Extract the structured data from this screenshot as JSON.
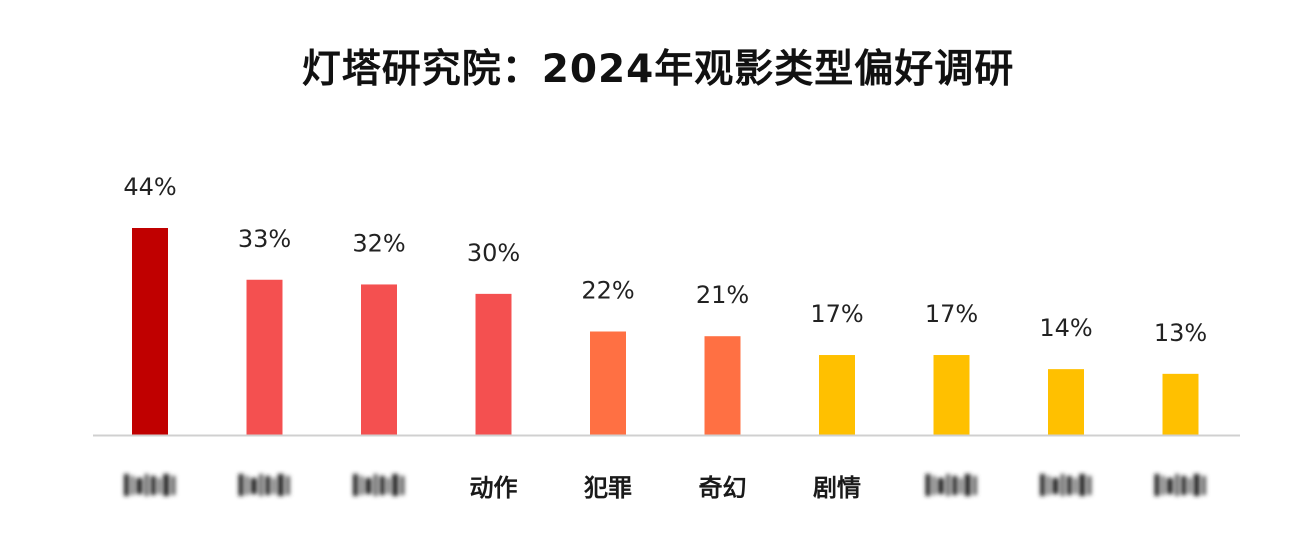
{
  "chart_data": {
    "type": "bar",
    "title": "灯塔研究院：2024年观影类型偏好调研",
    "xlabel": "",
    "ylabel": "",
    "ylim": [
      0,
      50
    ],
    "grid": false,
    "legend": "none",
    "categories": [
      "",
      "",
      "",
      "动作",
      "犯罪",
      "奇幻",
      "剧情",
      "",
      "",
      ""
    ],
    "values": [
      44,
      33,
      32,
      30,
      22,
      21,
      17,
      17,
      14,
      13
    ],
    "value_labels": [
      "44%",
      "33%",
      "32%",
      "30%",
      "22%",
      "21%",
      "17%",
      "17%",
      "14%",
      "13%"
    ],
    "blurred_categories": [
      true,
      true,
      true,
      false,
      false,
      false,
      false,
      true,
      true,
      true
    ],
    "colors": [
      "#c00000",
      "#f45050",
      "#f45050",
      "#f45050",
      "#ff7043",
      "#ff7043",
      "#ffc000",
      "#ffc000",
      "#ffc000",
      "#ffc000"
    ],
    "axis_color": "#d0d0d0"
  }
}
